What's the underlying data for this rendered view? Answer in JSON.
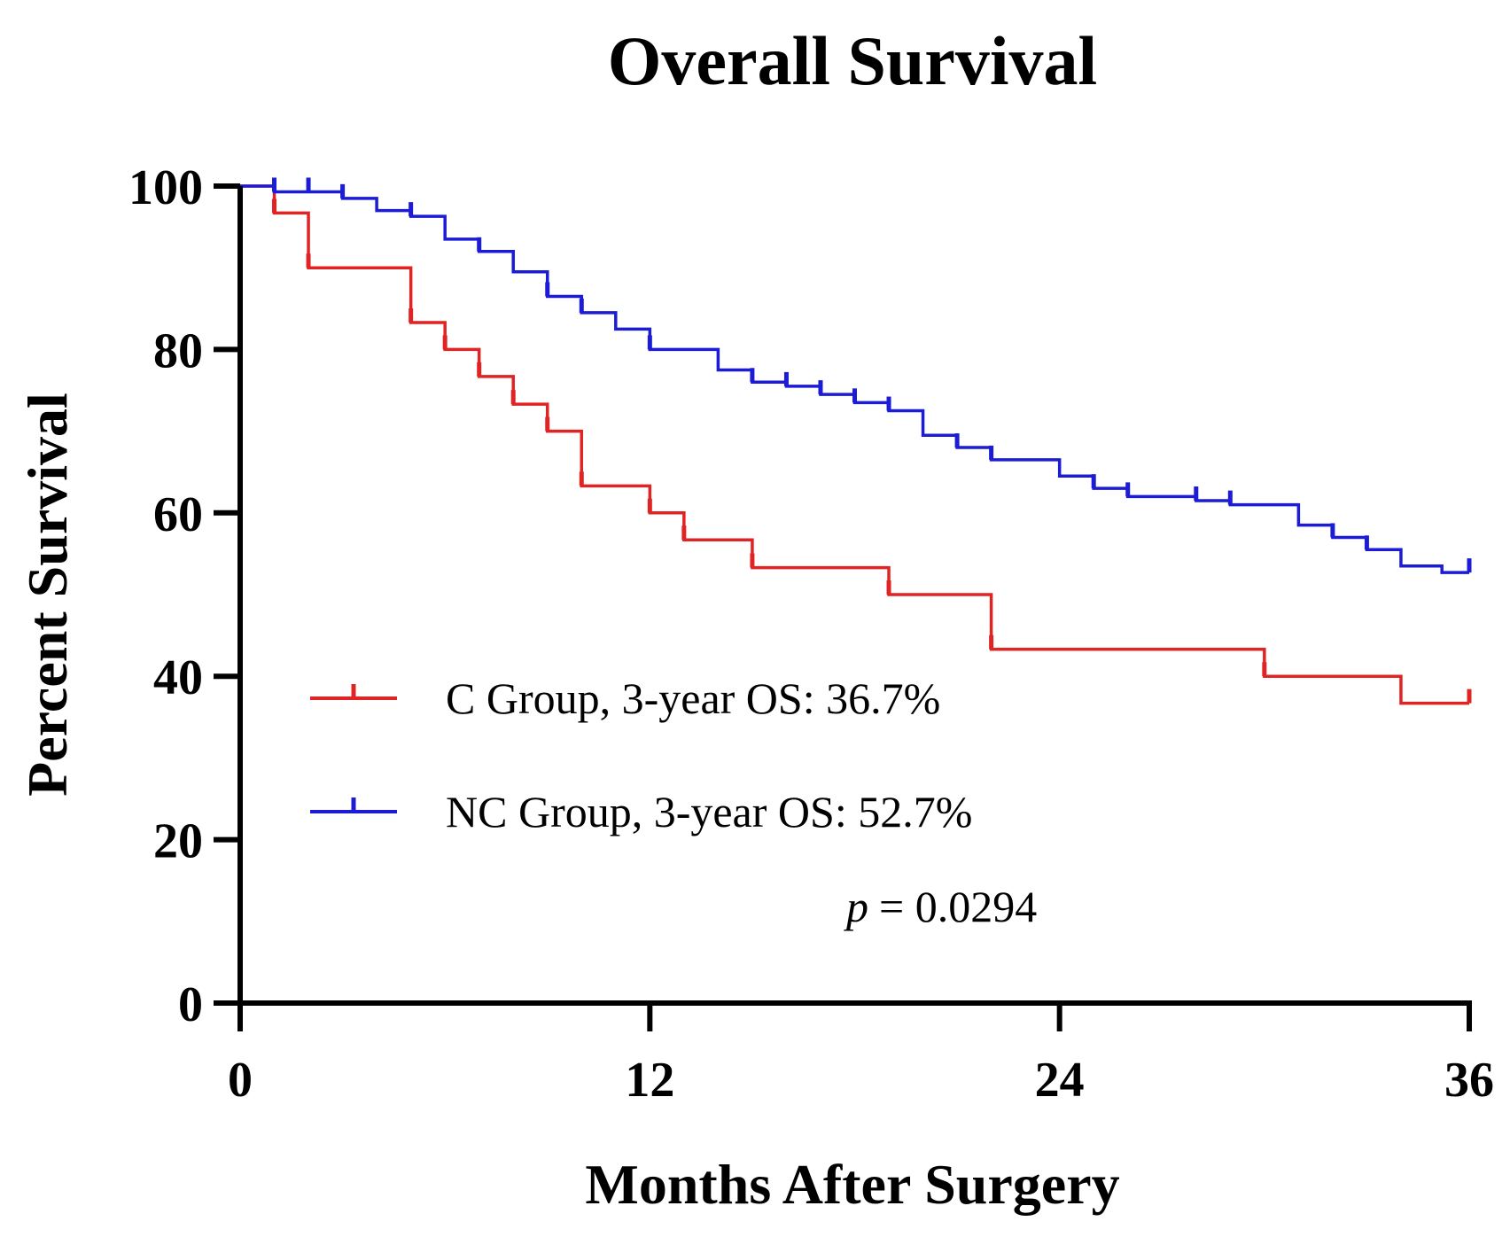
{
  "chart_data": {
    "type": "line",
    "subtype": "kaplan-meier step",
    "title": "Overall Survival",
    "xlabel": "Months After Surgery",
    "ylabel": "Percent Survival",
    "xlim": [
      0,
      36
    ],
    "ylim": [
      0,
      100
    ],
    "xticks": [
      0,
      12,
      24,
      36
    ],
    "yticks": [
      0,
      20,
      40,
      60,
      80,
      100
    ],
    "grid": false,
    "legend_position": "lower-left inside",
    "series": [
      {
        "name": "C Group, 3-year OS: 36.7%",
        "color": "#e02424",
        "steps": [
          [
            0,
            100
          ],
          [
            1,
            96.7
          ],
          [
            2,
            90
          ],
          [
            5,
            83.3
          ],
          [
            6,
            80
          ],
          [
            7,
            76.7
          ],
          [
            8,
            73.3
          ],
          [
            9,
            70
          ],
          [
            10,
            63.3
          ],
          [
            12,
            60
          ],
          [
            13,
            56.7
          ],
          [
            15,
            53.3
          ],
          [
            19,
            50
          ],
          [
            22,
            43.3
          ],
          [
            30,
            40
          ],
          [
            34,
            36.7
          ],
          [
            36,
            36.7
          ]
        ],
        "censored": [
          [
            1,
            96.7
          ],
          [
            2,
            90
          ],
          [
            5,
            83.3
          ],
          [
            6,
            80
          ],
          [
            7,
            76.7
          ],
          [
            8,
            73.3
          ],
          [
            9,
            70
          ],
          [
            10,
            63.3
          ],
          [
            12,
            60
          ],
          [
            13,
            56.7
          ],
          [
            15,
            53.3
          ],
          [
            19,
            50
          ],
          [
            22,
            43.3
          ],
          [
            30,
            40
          ],
          [
            36,
            36.7
          ]
        ]
      },
      {
        "name": "NC Group, 3-year OS: 52.7%",
        "color": "#1c1cd6",
        "steps": [
          [
            0,
            100
          ],
          [
            1,
            99.3
          ],
          [
            3,
            98.5
          ],
          [
            4,
            97
          ],
          [
            5,
            96.3
          ],
          [
            6,
            93.5
          ],
          [
            7,
            92
          ],
          [
            8,
            89.5
          ],
          [
            9,
            86.5
          ],
          [
            10,
            84.5
          ],
          [
            11,
            82.5
          ],
          [
            12,
            80
          ],
          [
            14,
            77.5
          ],
          [
            15,
            76
          ],
          [
            16,
            75.5
          ],
          [
            17,
            74.5
          ],
          [
            18,
            73.5
          ],
          [
            19,
            72.5
          ],
          [
            20,
            69.5
          ],
          [
            21,
            68
          ],
          [
            22,
            66.5
          ],
          [
            24,
            64.5
          ],
          [
            25,
            63
          ],
          [
            26,
            62
          ],
          [
            28,
            61.5
          ],
          [
            29,
            61
          ],
          [
            31,
            58.5
          ],
          [
            32,
            57
          ],
          [
            33,
            55.5
          ],
          [
            34,
            53.5
          ],
          [
            35.2,
            52.7
          ],
          [
            36,
            52.7
          ]
        ],
        "censored": [
          [
            1,
            99.3
          ],
          [
            2,
            99.3
          ],
          [
            3,
            98.5
          ],
          [
            5,
            96.3
          ],
          [
            7,
            92
          ],
          [
            9,
            86.5
          ],
          [
            10,
            84.5
          ],
          [
            12,
            80
          ],
          [
            15,
            76
          ],
          [
            16,
            75.5
          ],
          [
            17,
            74.5
          ],
          [
            18,
            73.5
          ],
          [
            19,
            72.5
          ],
          [
            21,
            68
          ],
          [
            22,
            66.5
          ],
          [
            25,
            63
          ],
          [
            26,
            62
          ],
          [
            28,
            61.5
          ],
          [
            29,
            61
          ],
          [
            32,
            57
          ],
          [
            33,
            55.5
          ],
          [
            36,
            52.7
          ]
        ]
      }
    ],
    "annotation": {
      "p_label": "p",
      "p_value": "= 0.0294"
    }
  }
}
